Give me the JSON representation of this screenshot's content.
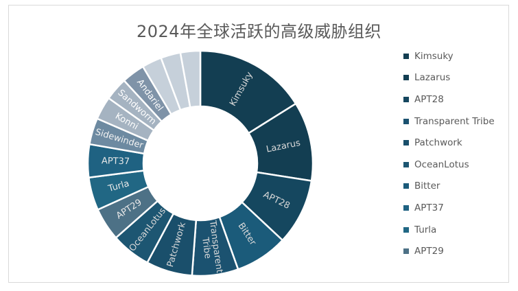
{
  "chart_data": {
    "type": "pie",
    "variant": "donut",
    "title": "2024年全球活跃的高级威胁组织",
    "legend_position": "right",
    "slices": [
      {
        "label": "Kimsuky",
        "value": 17,
        "color": "#133e52",
        "label_color": "#d9d9d9"
      },
      {
        "label": "Lazarus",
        "value": 12,
        "color": "#133e52",
        "label_color": "#d9d9d9"
      },
      {
        "label": "APT28",
        "value": 10,
        "color": "#15475f",
        "label_color": "#d9d9d9"
      },
      {
        "label": "Bitter",
        "value": 8,
        "color": "#1b5b7a",
        "label_color": "#d9d9d9"
      },
      {
        "label": "Transparent Tribe",
        "value": 7,
        "color": "#1b5270",
        "label_color": "#d9d9d9"
      },
      {
        "label": "Patchwork",
        "value": 7,
        "color": "#1a4f6b",
        "label_color": "#d9d9d9"
      },
      {
        "label": "OceanLotus",
        "value": 6,
        "color": "#1d5672",
        "label_color": "#d9d9d9"
      },
      {
        "label": "APT29",
        "value": 5,
        "color": "#4d7186",
        "label_color": "#e8e8e8"
      },
      {
        "label": "Turla",
        "value": 5,
        "color": "#216784",
        "label_color": "#e8e8e8"
      },
      {
        "label": "APT37",
        "value": 5,
        "color": "#1f6282",
        "label_color": "#e8e8e8"
      },
      {
        "label": "Sidewinder",
        "value": 4,
        "color": "#6d8aa1",
        "label_color": "#f2f2f2"
      },
      {
        "label": "Konni",
        "value": 3.5,
        "color": "#a5b3c1",
        "label_color": "#ffffff"
      },
      {
        "label": "Sandworm",
        "value": 3.5,
        "color": "#a5b3c1",
        "label_color": "#ffffff"
      },
      {
        "label": "Andariel",
        "value": 3.5,
        "color": "#7f93a8",
        "label_color": "#ffffff"
      },
      {
        "label": "",
        "value": 3,
        "color": "#c6d0da",
        "label_color": "#ffffff"
      },
      {
        "label": "",
        "value": 3,
        "color": "#c6d0da",
        "label_color": "#ffffff"
      },
      {
        "label": "",
        "value": 3,
        "color": "#c6d0da",
        "label_color": "#ffffff"
      }
    ],
    "legend": [
      {
        "label": "Kimsuky",
        "color": "#133e52"
      },
      {
        "label": "Lazarus",
        "color": "#133e52"
      },
      {
        "label": "APT28",
        "color": "#15475f"
      },
      {
        "label": "Transparent Tribe",
        "color": "#1b5270"
      },
      {
        "label": "Patchwork",
        "color": "#1a4f6b"
      },
      {
        "label": "OceanLotus",
        "color": "#1d5672"
      },
      {
        "label": "Bitter",
        "color": "#1b5b7a"
      },
      {
        "label": "APT37",
        "color": "#1f6282"
      },
      {
        "label": "Turla",
        "color": "#216784"
      },
      {
        "label": "APT29",
        "color": "#4d7186"
      }
    ]
  }
}
